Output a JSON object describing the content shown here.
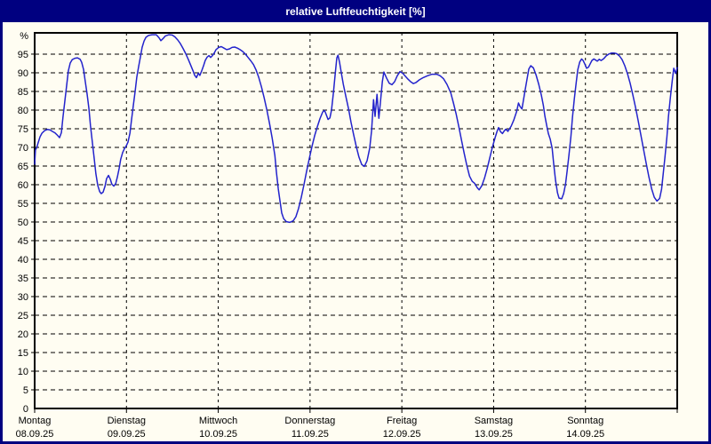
{
  "window": {
    "title": "relative Luftfeuchtigkeit [%]"
  },
  "colors": {
    "titlebar_bg": "#000080",
    "titlebar_text": "#ffffff",
    "window_border": "#000080",
    "content_bg": "#fffdf2",
    "plot_border": "#000000",
    "gridline": "#000000",
    "line": "#2323cc"
  },
  "chart_data": {
    "type": "line",
    "title": "relative Luftfeuchtigkeit [%]",
    "ylabel": "relative Luftfeuchtigkeit",
    "y_unit_label": "%",
    "y_zero_label": "0",
    "ylim": [
      0,
      100.7
    ],
    "y_ticks": [
      5,
      10,
      15,
      20,
      25,
      30,
      35,
      40,
      45,
      50,
      55,
      60,
      65,
      70,
      75,
      80,
      85,
      90,
      95
    ],
    "x_unit": "hours_since_Mon_00:00",
    "xlim": [
      0,
      168
    ],
    "grid": {
      "horizontal_dashed": true,
      "vertical_dashed": true
    },
    "legend_position": "none",
    "x_day_ticks": [
      {
        "t": 0,
        "weekday": "Montag",
        "date": "08.09.25"
      },
      {
        "t": 24,
        "weekday": "Dienstag",
        "date": "09.09.25"
      },
      {
        "t": 48,
        "weekday": "Mittwoch",
        "date": "10.09.25"
      },
      {
        "t": 72,
        "weekday": "Donnerstag",
        "date": "11.09.25"
      },
      {
        "t": 96,
        "weekday": "Freitag",
        "date": "12.09.25"
      },
      {
        "t": 120,
        "weekday": "Samstag",
        "date": "13.09.25"
      },
      {
        "t": 144,
        "weekday": "Sonntag",
        "date": "14.09.25"
      }
    ],
    "series": [
      {
        "name": "relative Luftfeuchtigkeit [%]",
        "color": "#2323cc",
        "points": [
          [
            0,
            65.5
          ],
          [
            0.2,
            69.3
          ],
          [
            0.5,
            69.9
          ],
          [
            0.9,
            71.2
          ],
          [
            1.4,
            72.8
          ],
          [
            1.9,
            73.8
          ],
          [
            2.6,
            74.5
          ],
          [
            3.3,
            74.8
          ],
          [
            4,
            74.7
          ],
          [
            4.6,
            74.3
          ],
          [
            5.3,
            73.9
          ],
          [
            6,
            73.2
          ],
          [
            6.5,
            72.6
          ],
          [
            7,
            74
          ],
          [
            7.4,
            78
          ],
          [
            7.9,
            82.5
          ],
          [
            8.4,
            87
          ],
          [
            8.8,
            90.5
          ],
          [
            9.3,
            92.6
          ],
          [
            9.8,
            93.5
          ],
          [
            10.5,
            93.9
          ],
          [
            11.2,
            94
          ],
          [
            11.9,
            93.6
          ],
          [
            12.3,
            92.8
          ],
          [
            12.8,
            90.8
          ],
          [
            13.2,
            87.9
          ],
          [
            13.7,
            84.3
          ],
          [
            14.2,
            80.3
          ],
          [
            14.6,
            75.8
          ],
          [
            15.1,
            71.2
          ],
          [
            15.6,
            66.8
          ],
          [
            16,
            62.9
          ],
          [
            16.5,
            59.8
          ],
          [
            17,
            58.1
          ],
          [
            17.4,
            57.6
          ],
          [
            17.9,
            58
          ],
          [
            18.4,
            59.6
          ],
          [
            18.8,
            61.6
          ],
          [
            19.3,
            62.5
          ],
          [
            19.8,
            61.4
          ],
          [
            20.2,
            60.1
          ],
          [
            20.7,
            59.6
          ],
          [
            21.2,
            60.3
          ],
          [
            21.6,
            62
          ],
          [
            22.1,
            64.4
          ],
          [
            22.5,
            66.8
          ],
          [
            23,
            68.6
          ],
          [
            23.5,
            69.7
          ],
          [
            23.9,
            70.3
          ],
          [
            24.4,
            71.4
          ],
          [
            24.9,
            73.8
          ],
          [
            25.3,
            77.2
          ],
          [
            25.8,
            81.2
          ],
          [
            26.3,
            85.3
          ],
          [
            26.7,
            88.8
          ],
          [
            27.2,
            91.8
          ],
          [
            27.7,
            94.5
          ],
          [
            28.1,
            96.8
          ],
          [
            28.6,
            98.5
          ],
          [
            29.1,
            99.5
          ],
          [
            29.8,
            100
          ],
          [
            30.7,
            100.2
          ],
          [
            31.8,
            100.2
          ],
          [
            32.5,
            99.4
          ],
          [
            33,
            98.6
          ],
          [
            33.5,
            99.1
          ],
          [
            34.2,
            99.9
          ],
          [
            35.1,
            100.2
          ],
          [
            36,
            100.1
          ],
          [
            36.7,
            99.6
          ],
          [
            37.4,
            98.8
          ],
          [
            38.1,
            97.8
          ],
          [
            38.8,
            96.5
          ],
          [
            39.5,
            95.1
          ],
          [
            40.2,
            93.5
          ],
          [
            40.9,
            91.8
          ],
          [
            41.4,
            90.5
          ],
          [
            41.8,
            89.4
          ],
          [
            42.3,
            88.7
          ],
          [
            42.8,
            89.9
          ],
          [
            43.2,
            89.3
          ],
          [
            43.7,
            90.6
          ],
          [
            44.2,
            92
          ],
          [
            44.6,
            93.3
          ],
          [
            45.1,
            94.2
          ],
          [
            45.6,
            94.6
          ],
          [
            46,
            94.1
          ],
          [
            46.5,
            94.6
          ],
          [
            47,
            95.4
          ],
          [
            47.4,
            96.2
          ],
          [
            48.1,
            96.8
          ],
          [
            48.8,
            97
          ],
          [
            49.5,
            96.6
          ],
          [
            50.2,
            96.2
          ],
          [
            50.9,
            96.4
          ],
          [
            51.6,
            96.8
          ],
          [
            52.3,
            96.9
          ],
          [
            53,
            96.6
          ],
          [
            53.7,
            96.2
          ],
          [
            54.4,
            95.7
          ],
          [
            55.1,
            95
          ],
          [
            55.8,
            94.1
          ],
          [
            56.5,
            93.2
          ],
          [
            57.2,
            92.2
          ],
          [
            57.9,
            90.7
          ],
          [
            58.6,
            88.7
          ],
          [
            59.3,
            86.2
          ],
          [
            60,
            83.3
          ],
          [
            60.7,
            80.1
          ],
          [
            61.4,
            76.5
          ],
          [
            62.1,
            72.4
          ],
          [
            62.8,
            67.8
          ],
          [
            63.2,
            63.4
          ],
          [
            63.7,
            58.9
          ],
          [
            64.2,
            55.2
          ],
          [
            64.6,
            52.4
          ],
          [
            65.1,
            50.9
          ],
          [
            65.8,
            50.1
          ],
          [
            66.7,
            49.9
          ],
          [
            67.6,
            50.3
          ],
          [
            68.3,
            51.4
          ],
          [
            69,
            53.6
          ],
          [
            69.7,
            56.6
          ],
          [
            70.4,
            60
          ],
          [
            71.1,
            63.6
          ],
          [
            71.8,
            67
          ],
          [
            72.5,
            70.2
          ],
          [
            73.2,
            73.1
          ],
          [
            73.9,
            75.5
          ],
          [
            74.6,
            77.7
          ],
          [
            75.3,
            79.5
          ],
          [
            75.8,
            79.9
          ],
          [
            76.2,
            78.9
          ],
          [
            76.7,
            77.5
          ],
          [
            77.2,
            77.9
          ],
          [
            77.6,
            80
          ],
          [
            78.1,
            84.5
          ],
          [
            78.6,
            90
          ],
          [
            79,
            94
          ],
          [
            79.3,
            94.7
          ],
          [
            79.7,
            92.9
          ],
          [
            80.2,
            89.9
          ],
          [
            80.7,
            86.9
          ],
          [
            81.4,
            83.5
          ],
          [
            82.1,
            80.2
          ],
          [
            82.7,
            76.8
          ],
          [
            83.4,
            73.4
          ],
          [
            84.1,
            70.2
          ],
          [
            84.8,
            67.4
          ],
          [
            85.5,
            65.4
          ],
          [
            86.2,
            64.9
          ],
          [
            86.9,
            66.4
          ],
          [
            87.6,
            69.8
          ],
          [
            88.1,
            74.5
          ],
          [
            88.6,
            82.8
          ],
          [
            89,
            78.3
          ],
          [
            89.5,
            84.2
          ],
          [
            90,
            77.8
          ],
          [
            90.4,
            82
          ],
          [
            90.9,
            87.6
          ],
          [
            91.3,
            90.2
          ],
          [
            92,
            88.6
          ],
          [
            92.7,
            87.2
          ],
          [
            93.4,
            86.8
          ],
          [
            94.1,
            87.6
          ],
          [
            94.8,
            89.2
          ],
          [
            95.5,
            90.3
          ],
          [
            96.2,
            89.9
          ],
          [
            96.9,
            89.1
          ],
          [
            97.6,
            88.3
          ],
          [
            98.3,
            87.6
          ],
          [
            99,
            87.1
          ],
          [
            99.7,
            87.4
          ],
          [
            100.6,
            88.1
          ],
          [
            101.6,
            88.7
          ],
          [
            102.7,
            89.2
          ],
          [
            103.9,
            89.6
          ],
          [
            105.1,
            89.6
          ],
          [
            106,
            89.2
          ],
          [
            106.9,
            88.4
          ],
          [
            107.8,
            86.9
          ],
          [
            108.8,
            84.6
          ],
          [
            109.5,
            81.9
          ],
          [
            110.2,
            78.9
          ],
          [
            110.9,
            75.5
          ],
          [
            111.6,
            71.9
          ],
          [
            112.3,
            68.4
          ],
          [
            113,
            65.1
          ],
          [
            113.7,
            62.3
          ],
          [
            114.4,
            60.9
          ],
          [
            115,
            60.4
          ],
          [
            115.7,
            59.2
          ],
          [
            116.2,
            58.6
          ],
          [
            116.9,
            59.7
          ],
          [
            117.6,
            61.7
          ],
          [
            118.3,
            64.3
          ],
          [
            119,
            67.2
          ],
          [
            119.7,
            70.1
          ],
          [
            120.4,
            72.6
          ],
          [
            120.9,
            74.3
          ],
          [
            121.3,
            75.3
          ],
          [
            121.8,
            74.2
          ],
          [
            122.3,
            73.7
          ],
          [
            122.7,
            74.3
          ],
          [
            123.2,
            74.9
          ],
          [
            123.7,
            74.3
          ],
          [
            124.1,
            74.9
          ],
          [
            124.6,
            75.7
          ],
          [
            125.3,
            77.4
          ],
          [
            126,
            79.6
          ],
          [
            126.5,
            81.9
          ],
          [
            126.9,
            81
          ],
          [
            127.4,
            80.3
          ],
          [
            127.8,
            82.7
          ],
          [
            128.3,
            85.7
          ],
          [
            128.8,
            88.7
          ],
          [
            129.2,
            91
          ],
          [
            129.7,
            91.9
          ],
          [
            130.4,
            91.3
          ],
          [
            131.1,
            89.4
          ],
          [
            131.8,
            86.9
          ],
          [
            132.5,
            83.9
          ],
          [
            133,
            81.2
          ],
          [
            133.4,
            78.4
          ],
          [
            133.9,
            75.8
          ],
          [
            134.3,
            73.7
          ],
          [
            134.8,
            72.2
          ],
          [
            135.3,
            69.7
          ],
          [
            135.7,
            65.6
          ],
          [
            136.2,
            61.1
          ],
          [
            136.7,
            57.8
          ],
          [
            137.1,
            56.4
          ],
          [
            137.8,
            56.2
          ],
          [
            138.3,
            57.6
          ],
          [
            138.8,
            60.1
          ],
          [
            139.2,
            63.6
          ],
          [
            139.7,
            68
          ],
          [
            140.2,
            73
          ],
          [
            140.6,
            78
          ],
          [
            141.1,
            83
          ],
          [
            141.6,
            87.5
          ],
          [
            142,
            90.8
          ],
          [
            142.5,
            92.9
          ],
          [
            143,
            93.7
          ],
          [
            143.4,
            93.3
          ],
          [
            143.9,
            92.2
          ],
          [
            144.3,
            91.2
          ],
          [
            144.8,
            91.5
          ],
          [
            145.3,
            92.5
          ],
          [
            145.7,
            93.3
          ],
          [
            146.2,
            93.7
          ],
          [
            146.7,
            93.4
          ],
          [
            147.1,
            93.1
          ],
          [
            147.6,
            93.6
          ],
          [
            148.1,
            93.3
          ],
          [
            148.8,
            93.8
          ],
          [
            149.4,
            94.5
          ],
          [
            150.1,
            95
          ],
          [
            150.8,
            95.3
          ],
          [
            151.5,
            95.3
          ],
          [
            152.2,
            95.1
          ],
          [
            152.9,
            94.5
          ],
          [
            153.6,
            93.5
          ],
          [
            154.3,
            91.9
          ],
          [
            155,
            89.7
          ],
          [
            155.7,
            87.1
          ],
          [
            156.4,
            84
          ],
          [
            157.1,
            80.7
          ],
          [
            157.8,
            77.1
          ],
          [
            158.5,
            73.3
          ],
          [
            159.2,
            69.5
          ],
          [
            159.9,
            65.7
          ],
          [
            160.6,
            62
          ],
          [
            161.3,
            58.9
          ],
          [
            162,
            56.6
          ],
          [
            162.7,
            55.6
          ],
          [
            163.4,
            56.3
          ],
          [
            163.9,
            58.8
          ],
          [
            164.3,
            62.6
          ],
          [
            164.8,
            67.4
          ],
          [
            165.3,
            72.8
          ],
          [
            165.7,
            78.2
          ],
          [
            166.2,
            83.4
          ],
          [
            166.7,
            87.9
          ],
          [
            167.1,
            91.2
          ],
          [
            167.6,
            89.8
          ],
          [
            168,
            91.4
          ]
        ]
      }
    ]
  }
}
